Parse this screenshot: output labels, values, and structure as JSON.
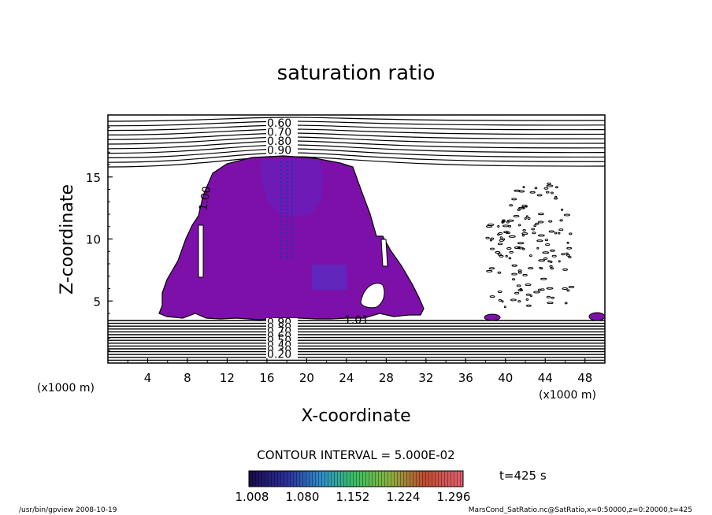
{
  "chart_data": {
    "type": "contour",
    "title": "saturation ratio",
    "xlabel": "X-coordinate",
    "ylabel": "Z-coordinate",
    "x_unit_left": "(x1000 m)",
    "x_unit_right": "(x1000 m)",
    "xlim": [
      0,
      50
    ],
    "ylim": [
      0,
      20
    ],
    "x_ticks": [
      "4",
      "8",
      "12",
      "16",
      "20",
      "24",
      "28",
      "32",
      "36",
      "40",
      "44",
      "48"
    ],
    "y_ticks": [
      "5",
      "10",
      "15"
    ],
    "upper_contour_labels": [
      "0.60",
      "0.70",
      "0.80",
      "0.90"
    ],
    "lower_contour_labels": [
      "0.90",
      "0.80",
      "0.70",
      "0.60",
      "0.50",
      "0.40",
      "0.30",
      "0.20"
    ],
    "cloud_boundary_labels": [
      "1.00",
      "1.01"
    ],
    "contour_interval": "CONTOUR INTERVAL = 5.000E-02",
    "colorbar_ticks": [
      "1.008",
      "1.080",
      "1.152",
      "1.224",
      "1.296"
    ],
    "time_label": "t=425 s",
    "footer_left": "/usr/bin/gpview  2008-10-19",
    "footer_right": "MarsCond_SatRatio.nc@SatRatio,x=0:50000,z=0:20000,t=425",
    "colors": {
      "cloud": "#7d10a8",
      "core": "#6a1cb8",
      "frame": "#000000",
      "colorbar": [
        "#1a0a4a",
        "#2a3ab0",
        "#2fa0c8",
        "#3cc060",
        "#b0b040",
        "#d04030",
        "#e05070"
      ]
    }
  }
}
